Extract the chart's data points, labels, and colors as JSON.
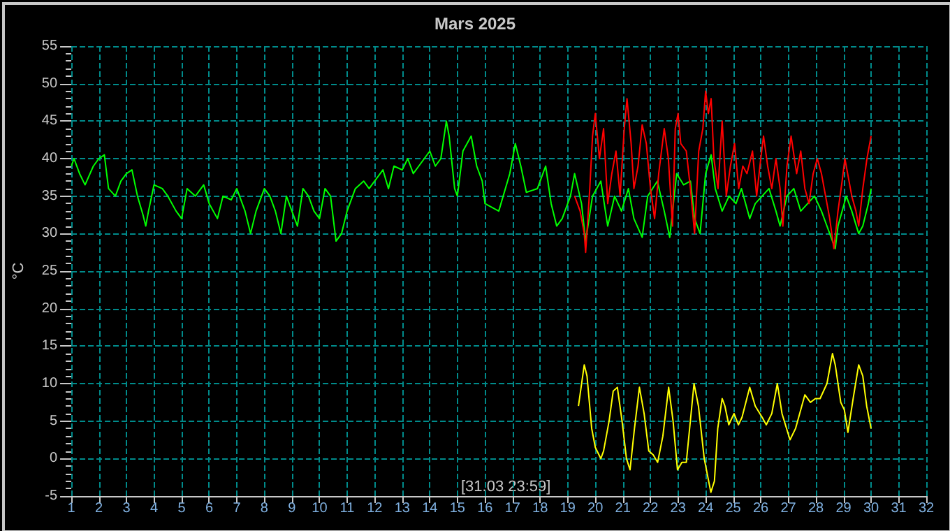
{
  "chart_data": {
    "type": "line",
    "title": "Mars 2025",
    "ylabel": "°C",
    "annotations": [
      "[31.03 23:59]"
    ],
    "xlim": [
      1,
      32
    ],
    "xticks": [
      1,
      2,
      3,
      4,
      5,
      6,
      7,
      8,
      9,
      10,
      11,
      12,
      13,
      14,
      15,
      16,
      17,
      18,
      19,
      20,
      21,
      22,
      23,
      24,
      25,
      26,
      27,
      28,
      29,
      30,
      31,
      32
    ],
    "ylim": [
      -5,
      55
    ],
    "yticks": [
      -5,
      0,
      5,
      10,
      15,
      20,
      25,
      30,
      35,
      40,
      45,
      50,
      55
    ],
    "grid": true,
    "marker": "none",
    "line_style": "solid",
    "series": [
      {
        "color": "#00ff00",
        "x": [
          1.0,
          1.1,
          1.3,
          1.5,
          1.8,
          2.0,
          2.2,
          2.35,
          2.6,
          2.8,
          3.0,
          3.2,
          3.4,
          3.6,
          3.7,
          3.8,
          4.0,
          4.3,
          4.5,
          4.8,
          5.0,
          5.2,
          5.5,
          5.8,
          6.0,
          6.3,
          6.5,
          6.8,
          7.0,
          7.3,
          7.5,
          7.7,
          8.0,
          8.2,
          8.4,
          8.6,
          8.8,
          9.0,
          9.2,
          9.4,
          9.6,
          9.8,
          10.0,
          10.2,
          10.4,
          10.6,
          10.8,
          11.0,
          11.3,
          11.6,
          11.8,
          12.0,
          12.3,
          12.5,
          12.7,
          13.0,
          13.2,
          13.4,
          13.6,
          13.8,
          14.0,
          14.2,
          14.4,
          14.6,
          14.7,
          14.9,
          15.0,
          15.2,
          15.5,
          15.7,
          15.9,
          16.0,
          16.5,
          16.9,
          17.1,
          17.3,
          17.5,
          17.9,
          18.2,
          18.4,
          18.6,
          18.8,
          19.1,
          19.25,
          19.5,
          19.65,
          19.9,
          20.2,
          20.45,
          20.7,
          20.95,
          21.2,
          21.4,
          21.7,
          21.9,
          22.25,
          22.5,
          22.7,
          22.95,
          23.2,
          23.45,
          23.6,
          23.8,
          24.0,
          24.2,
          24.35,
          24.6,
          24.85,
          25.1,
          25.3,
          25.6,
          25.8,
          26.05,
          26.3,
          26.55,
          26.7,
          26.95,
          27.2,
          27.45,
          27.7,
          27.95,
          28.2,
          28.35,
          28.5,
          28.7,
          28.8,
          29.1,
          29.3,
          29.55,
          29.7,
          29.9,
          30.0
        ],
        "values": [
          39,
          40,
          38,
          36.5,
          39,
          40,
          40.5,
          36,
          35,
          37,
          38,
          38.5,
          35,
          32.5,
          31,
          33,
          36.5,
          36,
          35,
          33,
          32,
          36,
          35,
          36.5,
          34,
          32,
          35,
          34.5,
          36,
          33,
          30,
          33,
          36,
          35,
          33,
          30,
          35,
          33,
          31,
          36,
          35,
          33,
          32,
          36,
          35,
          29,
          30,
          33,
          36,
          37,
          36,
          37,
          38.5,
          36,
          39,
          38.5,
          40,
          38,
          39,
          40,
          41,
          39,
          40,
          45,
          43,
          36,
          35,
          41,
          43,
          39,
          37,
          34,
          33,
          38,
          42,
          39,
          35.5,
          36,
          39,
          34,
          31,
          32,
          35,
          38,
          34,
          29,
          35,
          37,
          31,
          35,
          33,
          36,
          32,
          29.5,
          35,
          37,
          33,
          29.5,
          38,
          36.5,
          37,
          32,
          30,
          38,
          40.5,
          36,
          33,
          35,
          34,
          36,
          32,
          34,
          35,
          36,
          33,
          31,
          35,
          36,
          33,
          34,
          35,
          33,
          31.5,
          30,
          28,
          31,
          35,
          33,
          30,
          31,
          34,
          36
        ]
      },
      {
        "color": "#ff0000",
        "x": [
          19.25,
          19.45,
          19.6,
          19.65,
          19.8,
          19.9,
          20.0,
          20.15,
          20.3,
          20.45,
          20.6,
          20.75,
          20.9,
          21.05,
          21.15,
          21.3,
          21.4,
          21.55,
          21.7,
          21.85,
          22.0,
          22.15,
          22.3,
          22.5,
          22.65,
          22.8,
          22.9,
          23.0,
          23.1,
          23.3,
          23.45,
          23.6,
          23.75,
          23.9,
          24.0,
          24.1,
          24.2,
          24.3,
          24.45,
          24.6,
          24.75,
          24.9,
          25.05,
          25.2,
          25.35,
          25.5,
          25.7,
          25.85,
          26.0,
          26.1,
          26.25,
          26.4,
          26.55,
          26.7,
          26.8,
          26.95,
          27.1,
          27.3,
          27.45,
          27.6,
          27.75,
          27.9,
          28.05,
          28.2,
          28.35,
          28.5,
          28.65,
          28.8,
          28.95,
          29.05,
          29.15,
          29.3,
          29.45,
          29.55,
          29.7,
          29.85,
          30.0
        ],
        "values": [
          35,
          33,
          30,
          27.5,
          36,
          43,
          46,
          40,
          44,
          34,
          38,
          41,
          35,
          44,
          48,
          42,
          36,
          39,
          44.5,
          42,
          36,
          32,
          38,
          44,
          40,
          31,
          44,
          46,
          42,
          41,
          36,
          30,
          41,
          44,
          49,
          46,
          48,
          40,
          36,
          45,
          35,
          39,
          42,
          36,
          39,
          38,
          41,
          35,
          40,
          43,
          39,
          36,
          40,
          36,
          31,
          39,
          43,
          38,
          41,
          36,
          34,
          38,
          40,
          38,
          35,
          32,
          28,
          33,
          37,
          40,
          38,
          35,
          33,
          31,
          36,
          40,
          43
        ]
      },
      {
        "color": "#ffff00",
        "x": [
          19.39,
          19.6,
          19.7,
          19.87,
          20.0,
          20.2,
          20.3,
          20.5,
          20.65,
          20.8,
          20.97,
          21.13,
          21.26,
          21.42,
          21.6,
          21.77,
          21.94,
          22.1,
          22.26,
          22.45,
          22.66,
          22.82,
          22.98,
          23.14,
          23.3,
          23.58,
          23.74,
          23.95,
          24.19,
          24.32,
          24.44,
          24.6,
          24.7,
          24.84,
          25.03,
          25.19,
          25.32,
          25.6,
          25.8,
          26.05,
          26.2,
          26.4,
          26.6,
          26.77,
          27.06,
          27.26,
          27.6,
          27.8,
          27.98,
          28.15,
          28.4,
          28.6,
          28.7,
          28.9,
          29.03,
          29.16,
          29.35,
          29.55,
          29.7,
          29.84,
          30.0
        ],
        "values": [
          7,
          12.5,
          11,
          4,
          1.5,
          0,
          1,
          5,
          9,
          9.5,
          5,
          0,
          -1.5,
          4,
          9.5,
          6,
          1,
          0.5,
          -0.5,
          3,
          9.5,
          5,
          -1.5,
          -0.5,
          -0.5,
          10,
          7,
          0,
          -4.5,
          -3,
          4,
          8,
          7,
          4.5,
          6,
          4.5,
          5.5,
          9.5,
          7,
          5.5,
          4.5,
          6,
          10,
          6,
          2.5,
          4,
          8.5,
          7.5,
          8,
          8,
          10,
          14,
          12.5,
          7.5,
          6.5,
          3.5,
          8,
          12.5,
          11,
          7,
          4
        ]
      }
    ]
  }
}
